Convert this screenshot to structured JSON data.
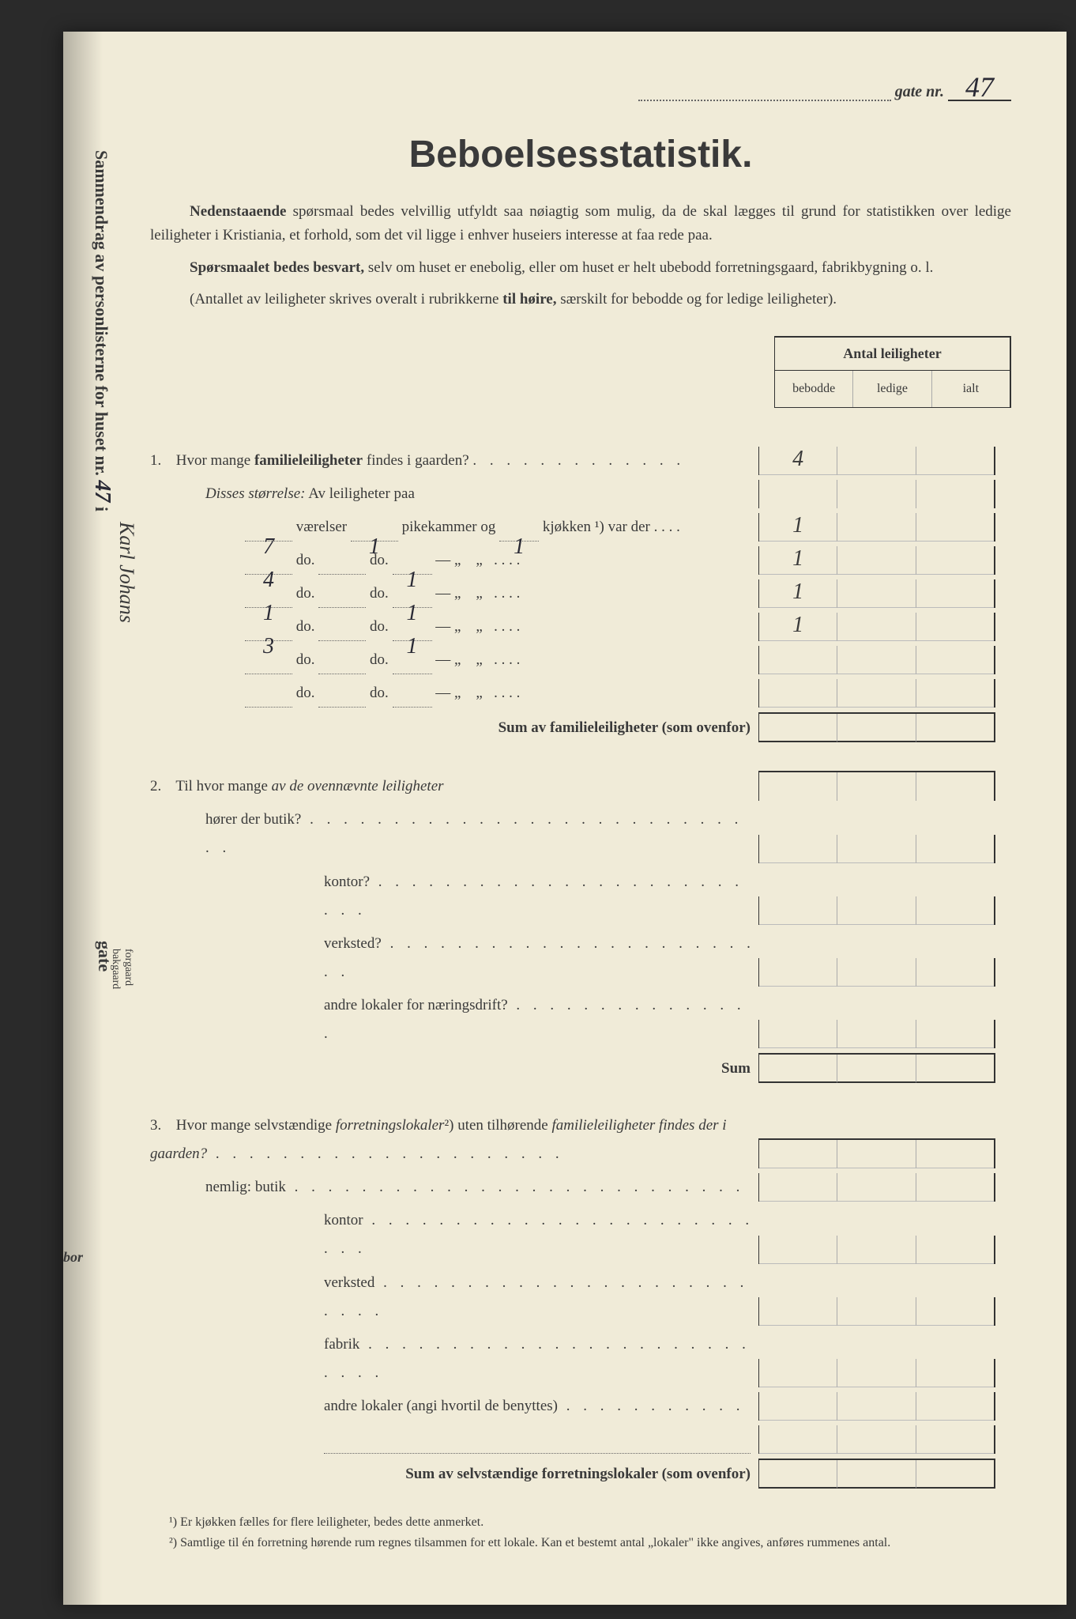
{
  "header": {
    "gate_label": "gate nr.",
    "gate_nr": "47"
  },
  "title": "Beboelsesstatistik.",
  "intro": {
    "p1": "Nedenstaaende spørsmaal bedes velvillig utfyldt saa nøiagtig som mulig, da de skal lægges til grund for statistikken over ledige leiligheter i Kristiania, et forhold, som det vil ligge i enhver huseiers interesse at faa rede paa.",
    "p2": "Spørsmaalet bedes besvart, selv om huset er enebolig, eller om huset er helt ubebodd forretningsgaard, fabrikbygning o. l.",
    "p3": "(Antallet av leiligheter skrives overalt i rubrikkerne til høire, særskilt for bebodde og for ledige leiligheter)."
  },
  "table_header": {
    "title": "Antal leiligheter",
    "col1": "bebodde",
    "col2": "ledige",
    "col3": "ialt"
  },
  "q1": {
    "num": "1.",
    "text_a": "Hvor mange ",
    "text_b": "familieleiligheter",
    "text_c": " findes i gaarden?",
    "val_bebodde": "4",
    "disse": "Disses størrelse:",
    "disse_av": " Av leiligheter paa",
    "rows": [
      {
        "v": "7",
        "rooms": "værelser",
        "pk": "1",
        "pk_label": "pikekammer og",
        "kj": "1",
        "kj_label": "kjøkken",
        "note": "¹) var der",
        "c1": "1"
      },
      {
        "v": "4",
        "rooms": "do.",
        "pk": "",
        "pk_label": "do.",
        "kj": "1",
        "kj_label": "—",
        "note": "",
        "c1": "1"
      },
      {
        "v": "1",
        "rooms": "do.",
        "pk": "",
        "pk_label": "do.",
        "kj": "1",
        "kj_label": "—",
        "note": "",
        "c1": "1"
      },
      {
        "v": "3",
        "rooms": "do.",
        "pk": "",
        "pk_label": "do.",
        "kj": "1",
        "kj_label": "—",
        "note": "",
        "c1": "1"
      },
      {
        "v": "",
        "rooms": "do.",
        "pk": "",
        "pk_label": "do.",
        "kj": "",
        "kj_label": "—",
        "note": "",
        "c1": ""
      },
      {
        "v": "",
        "rooms": "do.",
        "pk": "",
        "pk_label": "do.",
        "kj": "",
        "kj_label": "—",
        "note": "",
        "c1": ""
      }
    ],
    "sum_label": "Sum av familieleiligheter ",
    "sum_note": "(som ovenfor)"
  },
  "q2": {
    "num": "2.",
    "text": "Til hvor mange ",
    "text_i": "av de ovennævnte leiligheter",
    "sub1": "hører der butik?",
    "sub2": "kontor?",
    "sub3": "verksted?",
    "sub4": "andre lokaler for næringsdrift?",
    "sum": "Sum"
  },
  "q3": {
    "num": "3.",
    "text_a": "Hvor mange selvstændige ",
    "text_b": "forretningslokaler",
    "text_c": "²) uten tilhørende ",
    "text_d": "familieleiligheter findes der i gaarden?",
    "nemlig": "nemlig:",
    "sub1": "butik",
    "sub2": "kontor",
    "sub3": "verksted",
    "sub4": "fabrik",
    "sub5": "andre lokaler (angi hvortil de benyttes)",
    "sum_label": "Sum av selvstændige forretningslokaler ",
    "sum_note": "(som ovenfor)"
  },
  "footnotes": {
    "f1": "¹)  Er kjøkken fælles for flere leiligheter, bedes dette anmerket.",
    "f2": "²)  Samtlige til én forretning hørende rum regnes tilsammen for ett lokale.  Kan et bestemt antal „lokaler\" ikke angives, anføres rummenes antal."
  },
  "sidebar": {
    "text1": "Sammendrag av personlisterne for huset nr.",
    "hand_nr": "47",
    "hand_i": " i ",
    "hand_street": "Karl Johans",
    "gate": "gate",
    "forgaard": "forgaard",
    "bakgaard": "bakgaard",
    "bor": "bor"
  },
  "colors": {
    "paper": "#f0ebd8",
    "text": "#3a3a3a",
    "ink": "#2a2a35"
  }
}
